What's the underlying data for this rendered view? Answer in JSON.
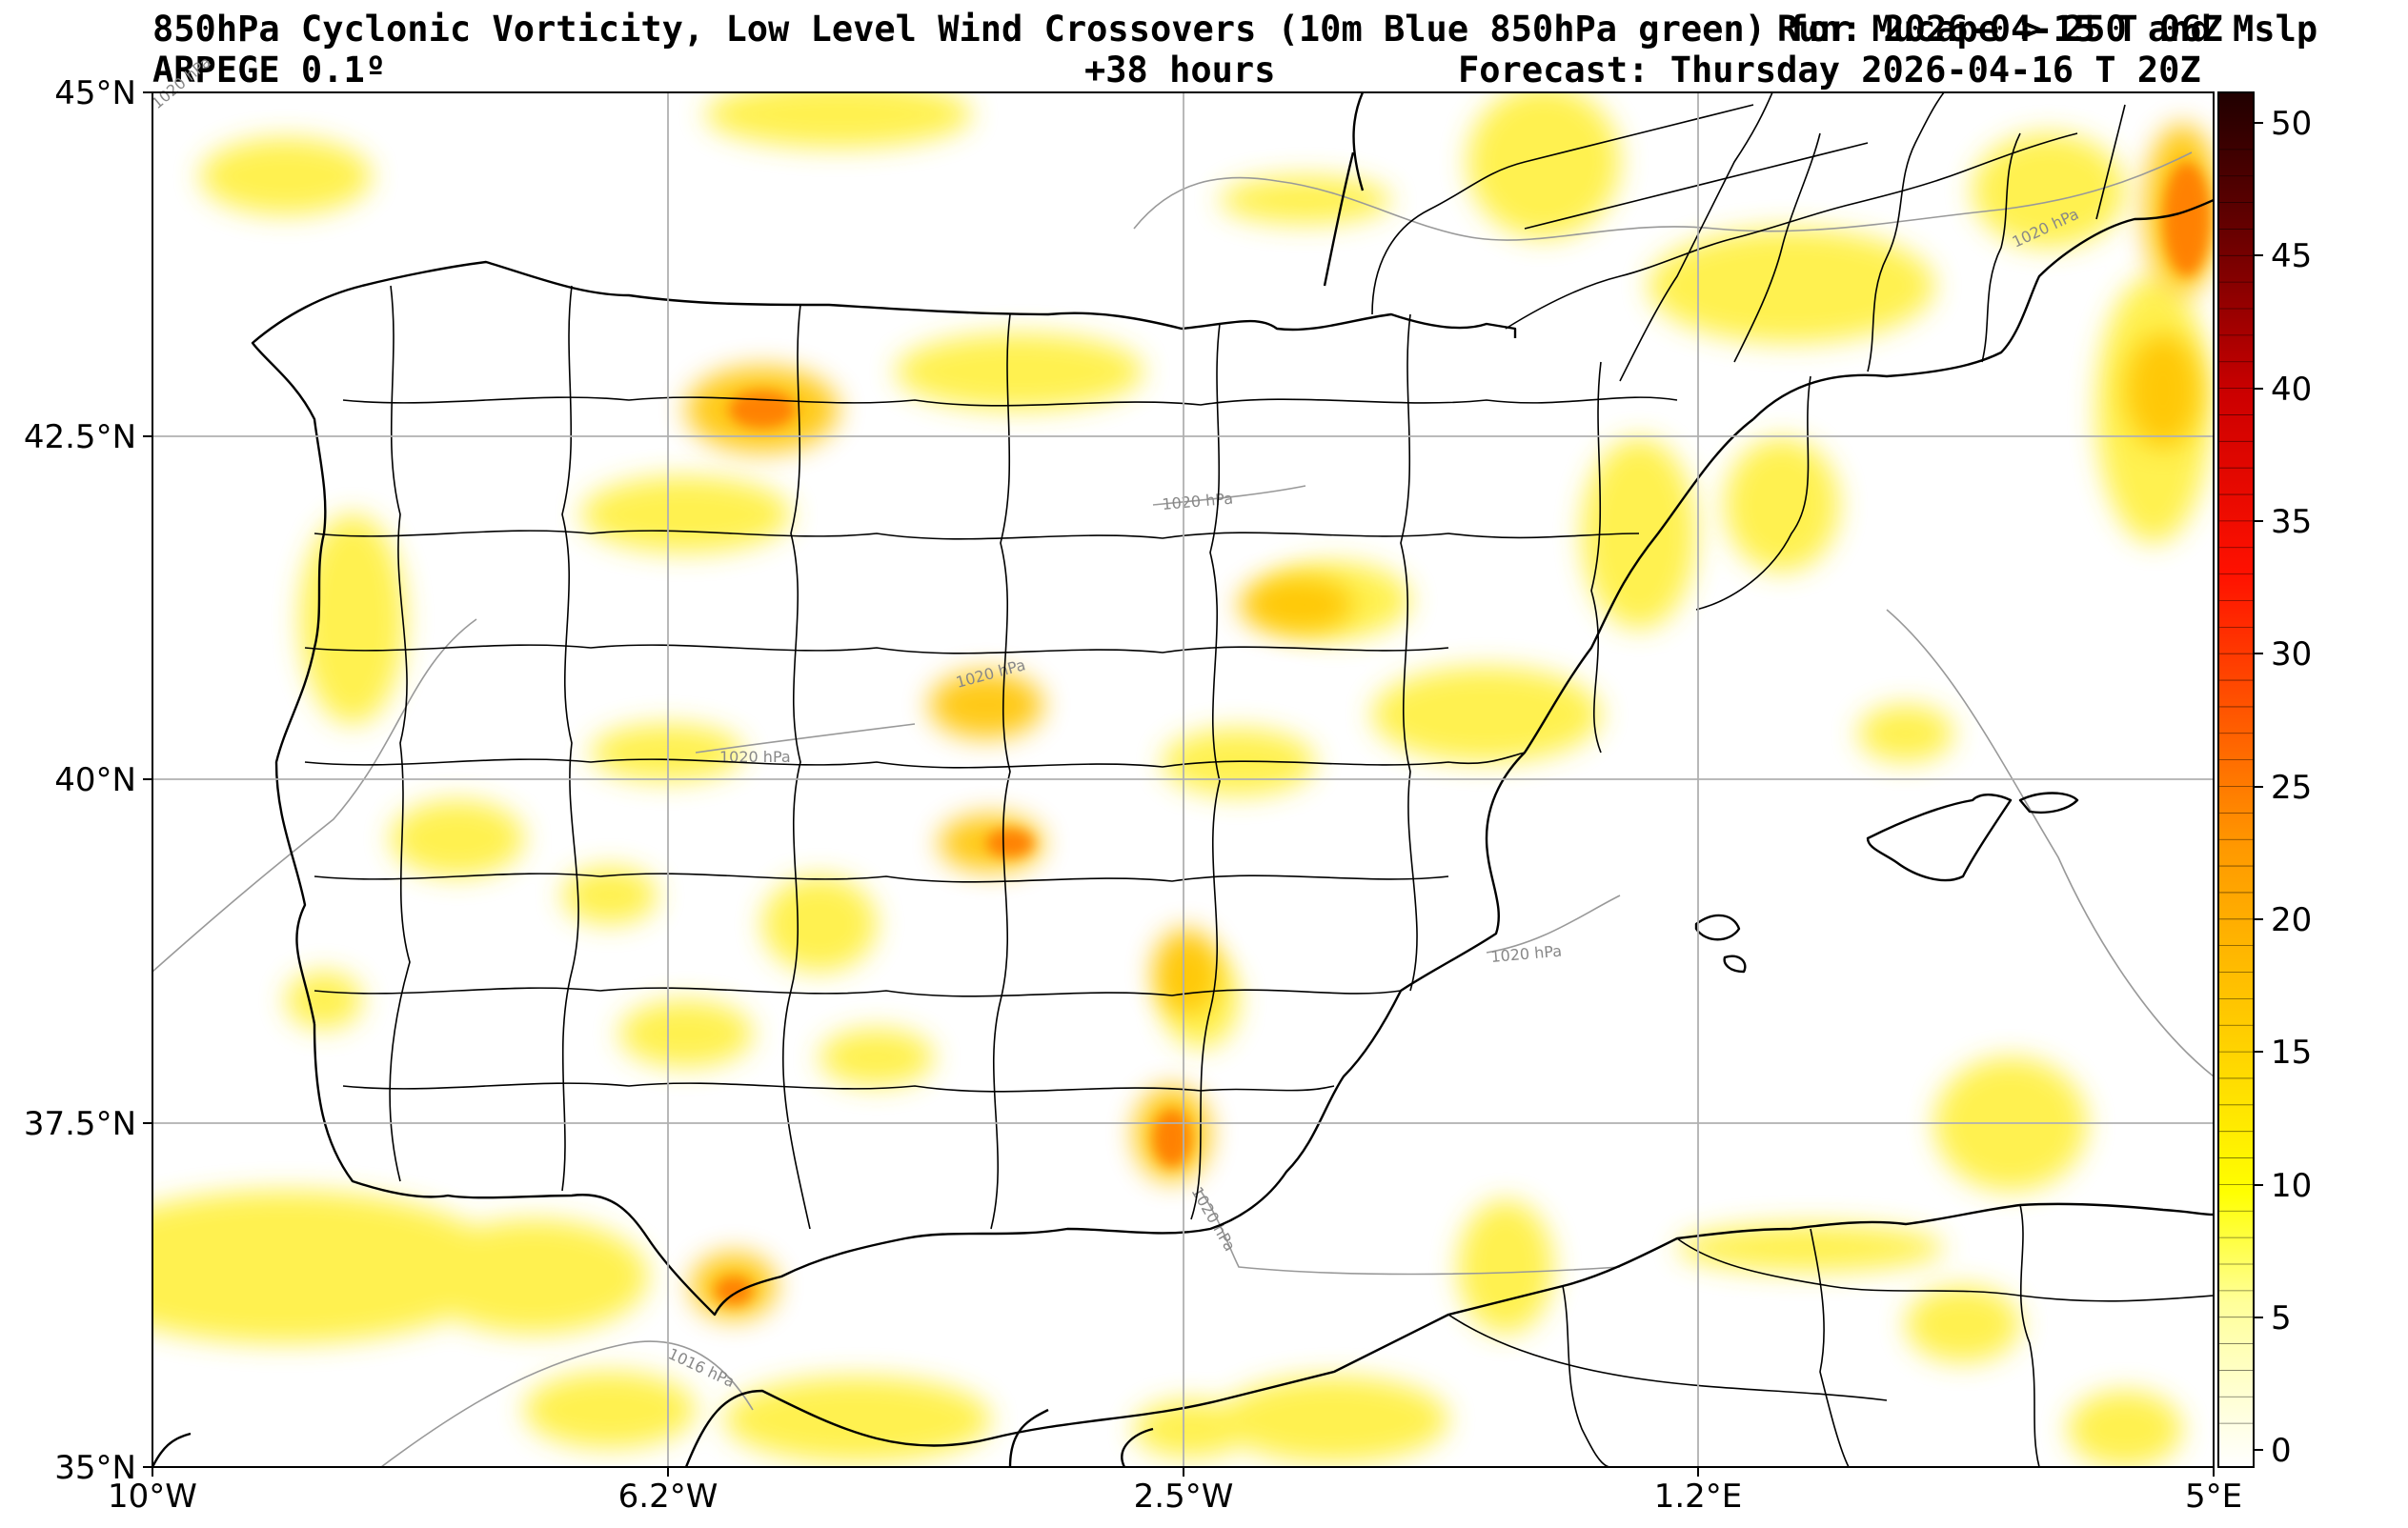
{
  "title": {
    "line1_left": "850hPa Cyclonic Vorticity, Low Level Wind Crossovers (10m Blue 850hPa green) for Mucape > 250 and Mslp",
    "line1_right": "Run: 2026-04-15 T 06Z",
    "line2_left": "ARPEGE 0.1º",
    "line2_center": "+38 hours",
    "line2_right": "Forecast: Thursday 2026-04-16 T 20Z"
  },
  "axes": {
    "x_ticks": [
      "10°W",
      "6.2°W",
      "2.5°W",
      "1.2°E",
      "5°E"
    ],
    "y_ticks": [
      "45°N",
      "42.5°N",
      "40°N",
      "37.5°N",
      "35°N"
    ]
  },
  "colorbar": {
    "ticks": [
      "50",
      "45",
      "40",
      "35",
      "30",
      "25",
      "20",
      "15",
      "10",
      "5",
      "0"
    ],
    "colors": [
      "#ffffff",
      "#ffff66",
      "#ffe600",
      "#ffbf00",
      "#ff9900",
      "#ff6600",
      "#ff2200",
      "#cc0000",
      "#800000",
      "#2a0000"
    ]
  },
  "isobars": {
    "labels": [
      "1020 hPa",
      "1020 hPa",
      "1020 hPa",
      "1020 hPa",
      "1020 hPa",
      "1020 hPa",
      "1016 hPa",
      "1020 hPa"
    ]
  },
  "chart_data": {
    "type": "heatmap",
    "variable": "850hPa cyclonic vorticity",
    "region": {
      "lon": [
        -10,
        5
      ],
      "lat": [
        35,
        45
      ]
    },
    "colorbar_range": [
      0,
      50
    ],
    "hotspots": [
      {
        "lon": -5.9,
        "lat": 42.65,
        "value": 22
      },
      {
        "lon": -2.8,
        "lat": 37.4,
        "value": 24
      },
      {
        "lon": 4.7,
        "lat": 44.2,
        "value": 28
      },
      {
        "lon": 4.5,
        "lat": 42.3,
        "value": 22
      },
      {
        "lon": -3.7,
        "lat": 39.6,
        "value": 20
      },
      {
        "lon": -5.9,
        "lat": 36.2,
        "value": 20
      },
      {
        "lon": -4.2,
        "lat": 40.5,
        "value": 18
      },
      {
        "lon": -1.5,
        "lat": 41.3,
        "value": 18
      },
      {
        "lon": -2.5,
        "lat": 38.5,
        "value": 18
      }
    ]
  }
}
